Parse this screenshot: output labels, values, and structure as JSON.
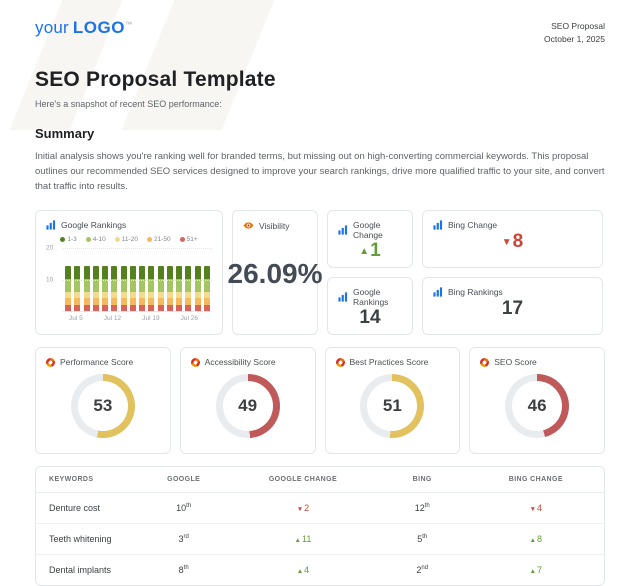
{
  "header": {
    "logo_your": "your",
    "logo_brand": "LOGO",
    "logo_tm": "™",
    "doc_type": "SEO Proposal",
    "date": "October 1, 2025"
  },
  "page": {
    "title": "SEO Proposal Template",
    "subtitle": "Here's a snapshot of recent SEO performance:"
  },
  "summary": {
    "heading": "Summary",
    "body": "Initial analysis shows you're ranking well for branded terms, but missing out on high-converting commercial keywords. This proposal outlines our recommended SEO services designed to improve your search rankings, drive more qualified traffic to your site, and convert that traffic into results."
  },
  "colors": {
    "brand_blue": "#1a73e8",
    "positive_green": "#649b3d",
    "negative_red": "#cf4437",
    "gauge_yellow": "#e2c25f",
    "gauge_red": "#c05959",
    "gauge_track": "#e9ecef"
  },
  "chart_data": {
    "type": "bar",
    "stacked": true,
    "title": "Google Rankings",
    "ylim": [
      0,
      20
    ],
    "yticks": [
      10,
      20
    ],
    "x_tick_labels": [
      "Jul 5",
      "Jul 12",
      "Jul 19",
      "Jul 26"
    ],
    "n_bars": 16,
    "legend_position": "top",
    "grid": "dotted-horizontal",
    "series": [
      {
        "name": "1-3",
        "color": "#55801f",
        "values": [
          4,
          4,
          4,
          4,
          4,
          4,
          4,
          4,
          4,
          4,
          4,
          4,
          4,
          4,
          4,
          4
        ]
      },
      {
        "name": "4-10",
        "color": "#a3c564",
        "values": [
          4,
          4,
          4,
          4,
          4,
          4,
          4,
          4,
          4,
          4,
          4,
          4,
          4,
          4,
          4,
          4
        ]
      },
      {
        "name": "11-20",
        "color": "#f1dc8e",
        "values": [
          2,
          2,
          2,
          2,
          2,
          2,
          2,
          2,
          2,
          2,
          2,
          2,
          2,
          2,
          2,
          2
        ]
      },
      {
        "name": "21-50",
        "color": "#f5b95e",
        "values": [
          2,
          2,
          2,
          2,
          2,
          2,
          2,
          2,
          2,
          2,
          2,
          2,
          2,
          2,
          2,
          2
        ]
      },
      {
        "name": "51+",
        "color": "#d9645c",
        "values": [
          2,
          2,
          2,
          2,
          2,
          2,
          2,
          2,
          2,
          2,
          2,
          2,
          2,
          2,
          2,
          2
        ]
      }
    ]
  },
  "cards": {
    "google_change": {
      "title": "Google Change",
      "value": "1",
      "direction": "up"
    },
    "bing_change": {
      "title": "Bing Change",
      "value": "8",
      "direction": "down"
    },
    "google_rankings": {
      "title": "Google Rankings",
      "value": "14"
    },
    "bing_rankings": {
      "title": "Bing Rankings",
      "value": "17"
    },
    "visibility": {
      "title": "Visibility",
      "value": "26.09%"
    }
  },
  "gauges": [
    {
      "title": "Performance Score",
      "value": 53,
      "color": "#e2c25f"
    },
    {
      "title": "Accessibility Score",
      "value": 49,
      "color": "#c05959"
    },
    {
      "title": "Best Practices Score",
      "value": 51,
      "color": "#e2c25f"
    },
    {
      "title": "SEO Score",
      "value": 46,
      "color": "#c05959"
    }
  ],
  "table": {
    "headers": [
      "Keywords",
      "Google",
      "Google Change",
      "Bing",
      "Bing Change"
    ],
    "rows": [
      {
        "keyword": "Denture cost",
        "google_rank": "10",
        "google_suffix": "th",
        "google_change_dir": "down",
        "google_change": "2",
        "bing_rank": "12",
        "bing_suffix": "th",
        "bing_change_dir": "down",
        "bing_change": "4"
      },
      {
        "keyword": "Teeth whitening",
        "google_rank": "3",
        "google_suffix": "rd",
        "google_change_dir": "up",
        "google_change": "11",
        "bing_rank": "5",
        "bing_suffix": "th",
        "bing_change_dir": "up",
        "bing_change": "8"
      },
      {
        "keyword": "Dental implants",
        "google_rank": "8",
        "google_suffix": "th",
        "google_change_dir": "up",
        "google_change": "4",
        "bing_rank": "2",
        "bing_suffix": "nd",
        "bing_change_dir": "up",
        "bing_change": "7"
      }
    ]
  }
}
